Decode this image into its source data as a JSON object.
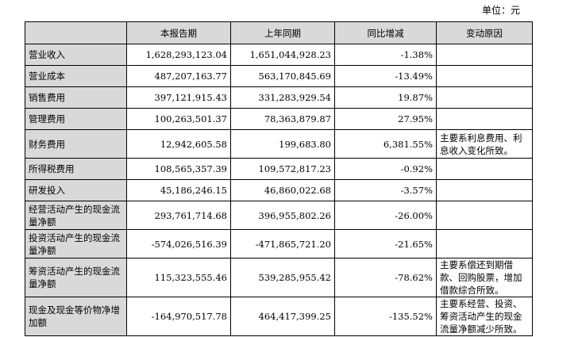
{
  "unit_label": "单位：元",
  "table": {
    "headers": [
      "",
      "本报告期",
      "上年同期",
      "同比增减",
      "变动原因"
    ],
    "rows": [
      {
        "item": "营业收入",
        "current": "1,628,293,123.04",
        "prior": "1,651,044,928.23",
        "change": "-1.38%",
        "reason": ""
      },
      {
        "item": "营业成本",
        "current": "487,207,163.77",
        "prior": "563,170,845.69",
        "change": "-13.49%",
        "reason": ""
      },
      {
        "item": "销售费用",
        "current": "397,121,915.43",
        "prior": "331,283,929.54",
        "change": "19.87%",
        "reason": ""
      },
      {
        "item": "管理费用",
        "current": "100,263,501.37",
        "prior": "78,363,879.87",
        "change": "27.95%",
        "reason": ""
      },
      {
        "item": "财务费用",
        "current": "12,942,605.58",
        "prior": "199,683.80",
        "change": "6,381.55%",
        "reason": "主要系利息费用、利息收入变化所致。"
      },
      {
        "item": "所得税费用",
        "current": "108,565,357.39",
        "prior": "109,572,817.23",
        "change": "-0.92%",
        "reason": ""
      },
      {
        "item": "研发投入",
        "current": "45,186,246.15",
        "prior": "46,860,022.68",
        "change": "-3.57%",
        "reason": ""
      },
      {
        "item": "经营活动产生的现金流量净额",
        "current": "293,761,714.68",
        "prior": "396,955,802.26",
        "change": "-26.00%",
        "reason": ""
      },
      {
        "item": "投资活动产生的现金流量净额",
        "current": "-574,026,516.39",
        "prior": "-471,865,721.20",
        "change": "-21.65%",
        "reason": ""
      },
      {
        "item": "筹资活动产生的现金流量净额",
        "current": "115,323,555.46",
        "prior": "539,285,955.42",
        "change": "-78.62%",
        "reason": "主要系偿还到期借款、回购股票，增加借款综合所致。"
      },
      {
        "item": "现金及现金等价物净增加额",
        "current": "-164,970,517.78",
        "prior": "464,417,399.25",
        "change": "-135.52%",
        "reason": "主要系经营、投资、筹资活动产生的现金流量净额减少所致。"
      }
    ]
  }
}
